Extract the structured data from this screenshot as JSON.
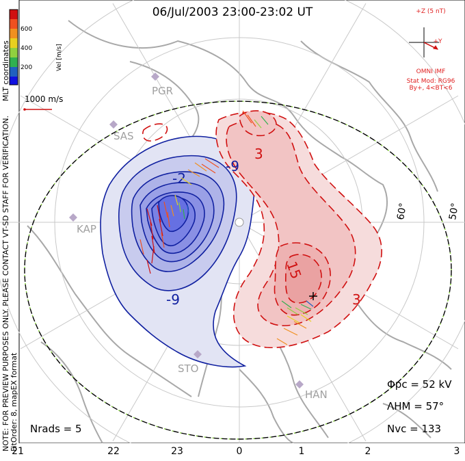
{
  "title": "06/Jul/2003 23:00-23:02 UT",
  "side_note": {
    "line1": "NOTE: FOR PREVIEW PURPOSES ONLY. PLEASE CONTACT VT-SD STAFF FOR VERIFICATION.",
    "line2": "FitOrder: 8, mapEX format",
    "line3": "MLT coordinates"
  },
  "colorbar": {
    "label": "Vel [m/s]",
    "ticks": [
      "600",
      "400",
      "200"
    ],
    "colors": [
      "#d01010",
      "#f05020",
      "#f09020",
      "#e8d020",
      "#90d040",
      "#30b050",
      "#2060c0",
      "#1010e0"
    ]
  },
  "scale_vector": {
    "label": "1000 m/s"
  },
  "imf": {
    "scale_label": "+Z (5 nT)",
    "y_label": "+Y",
    "source": "OMNI IMF",
    "model": "Stat Mod: RG96",
    "condition": "By+, 4<BT<6"
  },
  "stations": [
    "PGR",
    "SAS",
    "KAP",
    "STO",
    "HAN"
  ],
  "latitude_labels": [
    "60°",
    "50°"
  ],
  "contour_labels": [
    "-9",
    "-2",
    "-9",
    "3",
    "15",
    "3"
  ],
  "mlt_ticks": [
    "21",
    "22",
    "23",
    "0",
    "1",
    "2",
    "3"
  ],
  "stats": {
    "phi_pc": "Φpc = 52 kV",
    "lambda_hm": "ΛHM = 57°",
    "n_vc": "Nvc = 133",
    "n_rads": "Nrads = 5"
  },
  "colors": {
    "negative_contour": "#1020a0",
    "positive_contour": "#d01010",
    "negative_fill": "#6070e0",
    "positive_fill": "#f0a0a0",
    "coastline": "#a8a8a8",
    "boundary_green": "#80d030"
  }
}
